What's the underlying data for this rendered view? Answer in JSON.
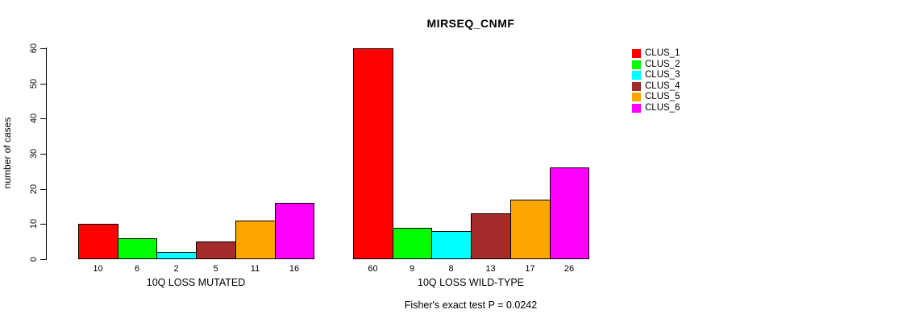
{
  "chart_data": {
    "type": "bar",
    "title": "MIRSEQ_CNMF",
    "ylabel": "number of cases",
    "xlabel": "",
    "ylim": [
      0,
      60
    ],
    "yticks": [
      0,
      10,
      20,
      30,
      40,
      50,
      60
    ],
    "grid": false,
    "legend_position": "top-right-margin",
    "series_labels": [
      "CLUS_1",
      "CLUS_2",
      "CLUS_3",
      "CLUS_4",
      "CLUS_5",
      "CLUS_6"
    ],
    "series_colors": [
      "#FF0000",
      "#00FF00",
      "#00FFFF",
      "#A52A2A",
      "#FFA500",
      "#FF00FF"
    ],
    "bar_border_color": "#000000",
    "groups": [
      {
        "label": "10Q LOSS MUTATED",
        "values": [
          10,
          6,
          2,
          5,
          11,
          16
        ]
      },
      {
        "label": "10Q LOSS WILD-TYPE",
        "values": [
          60,
          9,
          8,
          13,
          17,
          26
        ]
      }
    ],
    "annotation": "Fisher's exact test P = 0.0242"
  }
}
